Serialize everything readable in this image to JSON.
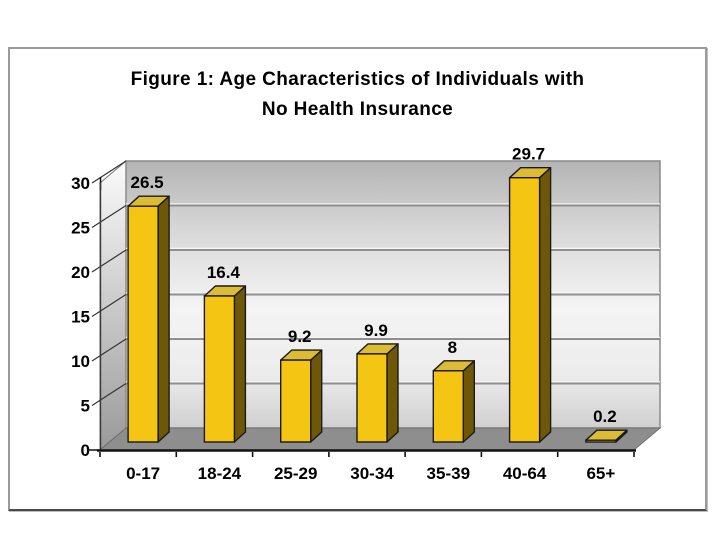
{
  "slide": {
    "title_line1": "Figure 1: Age Characteristics of Individuals with",
    "title_line2": "No Health Insurance"
  },
  "chart_data": {
    "type": "bar",
    "style": "3d-column",
    "title": "Figure 1: Age Characteristics of Individuals with No Health Insurance",
    "categories": [
      "0-17",
      "18-24",
      "25-29",
      "30-34",
      "35-39",
      "40-64",
      "65+"
    ],
    "values": [
      26.5,
      16.4,
      9.2,
      9.9,
      8,
      29.7,
      0.2
    ],
    "data_labels": [
      "26.5",
      "16.4",
      "9.2",
      "9.9",
      "8",
      "29.7",
      "0.2"
    ],
    "xlabel": "",
    "ylabel": "",
    "yticks": [
      0,
      5,
      10,
      15,
      20,
      25,
      30
    ],
    "ylim": [
      0,
      30
    ],
    "grid": "horizontal-back-wall",
    "legend_position": "none",
    "colors": {
      "bar_front": "#F5C513",
      "bar_top": "#DDBC35",
      "bar_side": "#6F5708",
      "bar_outline": "#1a1a1a",
      "wall_floor": "#8e8e8e",
      "gridline": "#8e8e8e",
      "axis_line": "#111111",
      "label_text": "#000000"
    }
  }
}
